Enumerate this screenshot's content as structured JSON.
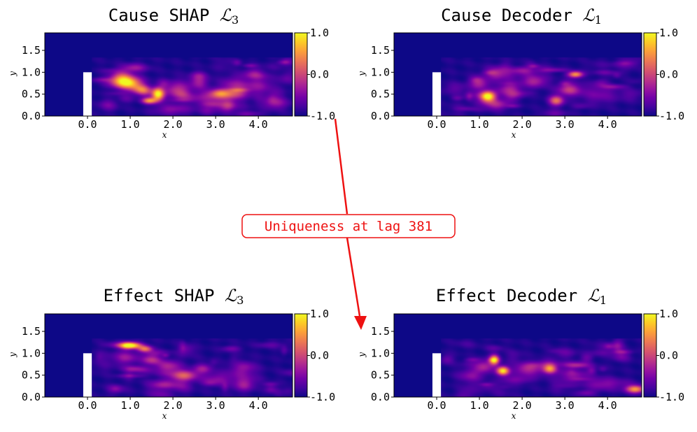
{
  "figure": {
    "connector": {
      "label": "Uniqueness at lag 381",
      "color": "#ee1111"
    }
  },
  "colormap": {
    "name": "plasma",
    "stops": [
      "#0d0887",
      "#46039f",
      "#7201a8",
      "#9c179e",
      "#bd3786",
      "#d8576b",
      "#ed7953",
      "#fb9f3a",
      "#fdca26",
      "#f0f921"
    ]
  },
  "chart_data": [
    {
      "type": "heatmap",
      "id": "cause-shap",
      "title_text": "Cause SHAP ",
      "title_sym": "ℒ",
      "title_sub": "3",
      "xlabel": "x",
      "ylabel": "y",
      "xticks": [
        0.0,
        1.0,
        2.0,
        3.0,
        4.0
      ],
      "xtick_labels": [
        "0.0",
        "1.0",
        "2.0",
        "3.0",
        "4.0"
      ],
      "yticks": [
        0.0,
        0.5,
        1.0,
        1.5
      ],
      "ytick_labels": [
        "0.0",
        "0.5",
        "1.0",
        "1.5"
      ],
      "xlim": [
        -1.0,
        4.8
      ],
      "ylim": [
        0.0,
        1.9
      ],
      "obstacle": {
        "x": [
          -0.1,
          0.1
        ],
        "y": [
          0.0,
          1.0
        ]
      },
      "colorbar": {
        "range": [
          -1.0,
          1.0
        ],
        "tick_labels": [
          "1.0",
          "0.0",
          "-1.0"
        ]
      },
      "blobs": [
        {
          "x": 0.8,
          "y": 0.85,
          "sx": 0.18,
          "sy": 0.12,
          "v": 0.55
        },
        {
          "x": 1.0,
          "y": 0.75,
          "sx": 0.2,
          "sy": 0.1,
          "v": 0.7
        },
        {
          "x": 1.25,
          "y": 0.6,
          "sx": 0.15,
          "sy": 0.08,
          "v": 0.5
        },
        {
          "x": 1.65,
          "y": 0.5,
          "sx": 0.1,
          "sy": 0.1,
          "v": 1.0
        },
        {
          "x": 1.45,
          "y": 0.35,
          "sx": 0.12,
          "sy": 0.05,
          "v": 0.7
        },
        {
          "x": 1.1,
          "y": 1.1,
          "sx": 0.2,
          "sy": 0.07,
          "v": 0.3
        },
        {
          "x": 2.1,
          "y": 0.6,
          "sx": 0.2,
          "sy": 0.15,
          "v": 0.3
        },
        {
          "x": 2.6,
          "y": 0.8,
          "sx": 0.15,
          "sy": 0.1,
          "v": 0.3
        },
        {
          "x": 2.9,
          "y": 0.45,
          "sx": 0.25,
          "sy": 0.12,
          "v": 0.3
        },
        {
          "x": 3.5,
          "y": 0.6,
          "sx": 0.2,
          "sy": 0.15,
          "v": 0.3
        },
        {
          "x": 4.0,
          "y": 0.7,
          "sx": 0.25,
          "sy": 0.15,
          "v": 0.25
        },
        {
          "x": 4.4,
          "y": 0.3,
          "sx": 0.2,
          "sy": 0.1,
          "v": 0.3
        },
        {
          "x": 2.0,
          "y": 0.15,
          "sx": 0.3,
          "sy": 0.08,
          "v": 0.25
        },
        {
          "x": 3.2,
          "y": 0.2,
          "sx": 0.3,
          "sy": 0.08,
          "v": 0.2
        }
      ]
    },
    {
      "type": "heatmap",
      "id": "cause-decoder",
      "title_text": "Cause Decoder ",
      "title_sym": "ℒ",
      "title_sub": "1",
      "xlabel": "x",
      "ylabel": "y",
      "xticks": [
        0.0,
        1.0,
        2.0,
        3.0,
        4.0
      ],
      "xtick_labels": [
        "0.0",
        "1.0",
        "2.0",
        "3.0",
        "4.0"
      ],
      "yticks": [
        0.0,
        0.5,
        1.0,
        1.5
      ],
      "ytick_labels": [
        "0.0",
        "0.5",
        "1.0",
        "1.5"
      ],
      "xlim": [
        -1.0,
        4.8
      ],
      "ylim": [
        0.0,
        1.9
      ],
      "obstacle": {
        "x": [
          -0.1,
          0.1
        ],
        "y": [
          0.0,
          1.0
        ]
      },
      "colorbar": {
        "range": [
          -1.0,
          1.0
        ],
        "tick_labels": [
          "1.0",
          "0.0",
          "-1.0"
        ]
      },
      "blobs": [
        {
          "x": 1.2,
          "y": 0.45,
          "sx": 0.12,
          "sy": 0.08,
          "v": 1.0
        },
        {
          "x": 1.0,
          "y": 0.75,
          "sx": 0.15,
          "sy": 0.1,
          "v": 0.35
        },
        {
          "x": 1.7,
          "y": 0.6,
          "sx": 0.2,
          "sy": 0.12,
          "v": 0.35
        },
        {
          "x": 2.3,
          "y": 0.8,
          "sx": 0.2,
          "sy": 0.1,
          "v": 0.35
        },
        {
          "x": 3.25,
          "y": 0.95,
          "sx": 0.12,
          "sy": 0.05,
          "v": 0.75
        },
        {
          "x": 2.8,
          "y": 0.35,
          "sx": 0.12,
          "sy": 0.08,
          "v": 0.6
        },
        {
          "x": 3.1,
          "y": 0.6,
          "sx": 0.2,
          "sy": 0.1,
          "v": 0.3
        },
        {
          "x": 1.4,
          "y": 0.25,
          "sx": 0.2,
          "sy": 0.08,
          "v": 0.3
        },
        {
          "x": 3.8,
          "y": 0.5,
          "sx": 0.3,
          "sy": 0.15,
          "v": 0.2
        },
        {
          "x": 2.0,
          "y": 1.05,
          "sx": 0.2,
          "sy": 0.06,
          "v": 0.25
        }
      ]
    },
    {
      "type": "heatmap",
      "id": "effect-shap",
      "title_text": "Effect SHAP ",
      "title_sym": "ℒ",
      "title_sub": "3",
      "xlabel": "x",
      "ylabel": "y",
      "xticks": [
        0.0,
        1.0,
        2.0,
        3.0,
        4.0
      ],
      "xtick_labels": [
        "0.0",
        "1.0",
        "2.0",
        "3.0",
        "4.0"
      ],
      "yticks": [
        0.0,
        0.5,
        1.0,
        1.5
      ],
      "ytick_labels": [
        "0.0",
        "0.5",
        "1.0",
        "1.5"
      ],
      "xlim": [
        -1.0,
        4.8
      ],
      "ylim": [
        0.0,
        1.9
      ],
      "obstacle": {
        "x": [
          -0.1,
          0.1
        ],
        "y": [
          0.0,
          1.0
        ]
      },
      "colorbar": {
        "range": [
          -1.0,
          1.0
        ],
        "tick_labels": [
          "1.0",
          "0.0",
          "-1.0"
        ]
      },
      "blobs": [
        {
          "x": 1.0,
          "y": 1.18,
          "sx": 0.18,
          "sy": 0.05,
          "v": 1.0
        },
        {
          "x": 1.35,
          "y": 1.1,
          "sx": 0.12,
          "sy": 0.05,
          "v": 0.6
        },
        {
          "x": 0.9,
          "y": 0.9,
          "sx": 0.2,
          "sy": 0.1,
          "v": 0.3
        },
        {
          "x": 1.5,
          "y": 0.85,
          "sx": 0.15,
          "sy": 0.08,
          "v": 0.4
        },
        {
          "x": 1.9,
          "y": 0.7,
          "sx": 0.2,
          "sy": 0.1,
          "v": 0.35
        },
        {
          "x": 2.3,
          "y": 0.5,
          "sx": 0.2,
          "sy": 0.08,
          "v": 0.45
        },
        {
          "x": 2.7,
          "y": 0.65,
          "sx": 0.15,
          "sy": 0.08,
          "v": 0.3
        },
        {
          "x": 3.0,
          "y": 0.4,
          "sx": 0.25,
          "sy": 0.1,
          "v": 0.25
        },
        {
          "x": 3.6,
          "y": 0.6,
          "sx": 0.25,
          "sy": 0.12,
          "v": 0.2
        },
        {
          "x": 1.8,
          "y": 0.3,
          "sx": 0.25,
          "sy": 0.08,
          "v": 0.25
        }
      ]
    },
    {
      "type": "heatmap",
      "id": "effect-decoder",
      "title_text": "Effect Decoder ",
      "title_sym": "ℒ",
      "title_sub": "1",
      "xlabel": "x",
      "ylabel": "y",
      "xticks": [
        0.0,
        1.0,
        2.0,
        3.0,
        4.0
      ],
      "xtick_labels": [
        "0.0",
        "1.0",
        "2.0",
        "3.0",
        "4.0"
      ],
      "yticks": [
        0.0,
        0.5,
        1.0,
        1.5
      ],
      "ytick_labels": [
        "0.0",
        "0.5",
        "1.0",
        "1.5"
      ],
      "xlim": [
        -1.0,
        4.8
      ],
      "ylim": [
        0.0,
        1.9
      ],
      "obstacle": {
        "x": [
          -0.1,
          0.1
        ],
        "y": [
          0.0,
          1.0
        ]
      },
      "colorbar": {
        "range": [
          -1.0,
          1.0
        ],
        "tick_labels": [
          "1.0",
          "0.0",
          "-1.0"
        ]
      },
      "blobs": [
        {
          "x": 1.35,
          "y": 0.85,
          "sx": 0.08,
          "sy": 0.08,
          "v": 0.85
        },
        {
          "x": 1.55,
          "y": 0.6,
          "sx": 0.1,
          "sy": 0.07,
          "v": 0.95
        },
        {
          "x": 1.1,
          "y": 0.7,
          "sx": 0.15,
          "sy": 0.1,
          "v": 0.35
        },
        {
          "x": 2.1,
          "y": 0.65,
          "sx": 0.2,
          "sy": 0.1,
          "v": 0.3
        },
        {
          "x": 2.65,
          "y": 0.65,
          "sx": 0.1,
          "sy": 0.07,
          "v": 0.55
        },
        {
          "x": 3.2,
          "y": 0.5,
          "sx": 0.25,
          "sy": 0.1,
          "v": 0.25
        },
        {
          "x": 4.65,
          "y": 0.18,
          "sx": 0.15,
          "sy": 0.06,
          "v": 0.75
        },
        {
          "x": 3.9,
          "y": 0.3,
          "sx": 0.3,
          "sy": 0.1,
          "v": 0.25
        },
        {
          "x": 0.8,
          "y": 0.5,
          "sx": 0.2,
          "sy": 0.1,
          "v": 0.25
        }
      ]
    }
  ]
}
